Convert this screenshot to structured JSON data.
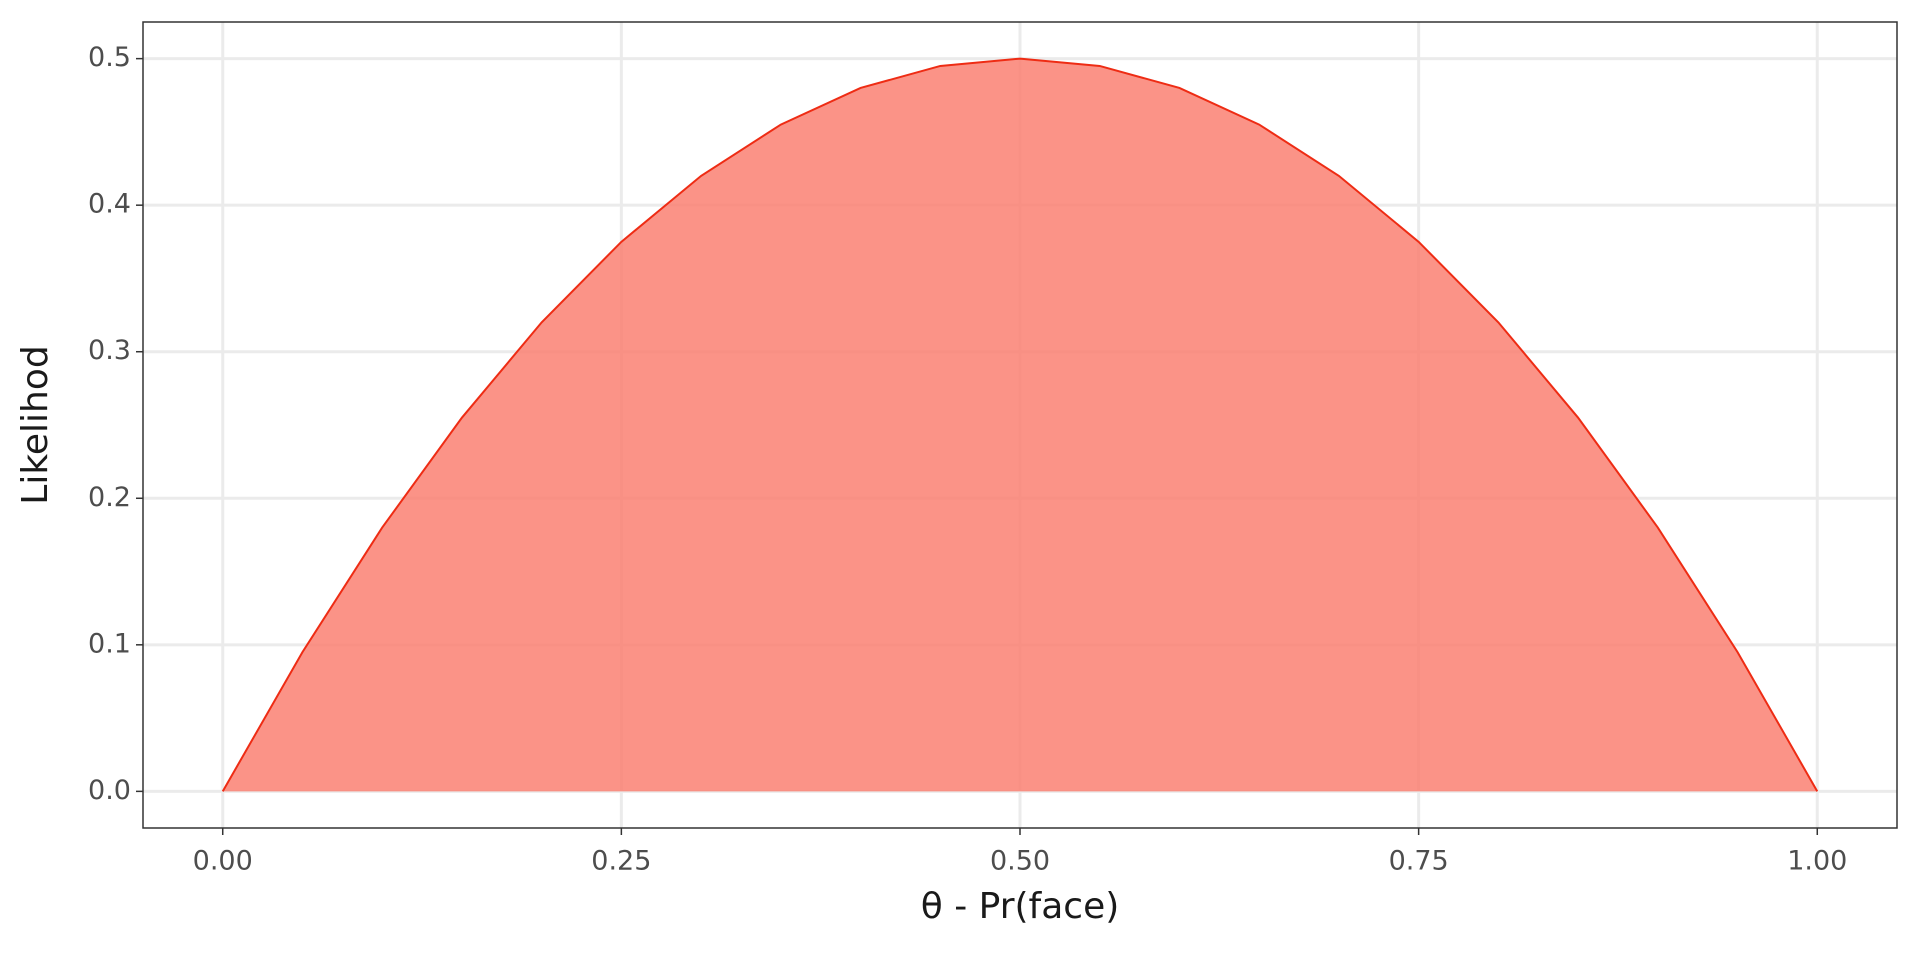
{
  "chart_data": {
    "type": "area",
    "xlabel": "θ - Pr(face)",
    "ylabel": "Likelihod",
    "x": [
      0,
      0.05,
      0.1,
      0.15,
      0.2,
      0.25,
      0.3,
      0.35,
      0.4,
      0.45,
      0.5,
      0.55,
      0.6,
      0.65,
      0.7,
      0.75,
      0.8,
      0.85,
      0.9,
      0.95,
      1
    ],
    "values": [
      0,
      0.095,
      0.18,
      0.255,
      0.32,
      0.375,
      0.42,
      0.455,
      0.48,
      0.495,
      0.5,
      0.495,
      0.48,
      0.455,
      0.42,
      0.375,
      0.32,
      0.255,
      0.18,
      0.095,
      0
    ],
    "color": "#fa8072",
    "line_color": "#ee2c14",
    "xlim": [
      -0.05,
      1.05
    ],
    "xticks": [
      {
        "value": 0,
        "label": "0.00"
      },
      {
        "value": 0.25,
        "label": "0.25"
      },
      {
        "value": 0.5,
        "label": "0.50"
      },
      {
        "value": 0.75,
        "label": "0.75"
      },
      {
        "value": 1,
        "label": "1.00"
      }
    ],
    "ylim": [
      -0.025,
      0.525
    ],
    "yticks": [
      {
        "value": 0,
        "label": "0.0"
      },
      0.1,
      0.2,
      0.3,
      0.4,
      0.5
    ],
    "grid": true
  }
}
